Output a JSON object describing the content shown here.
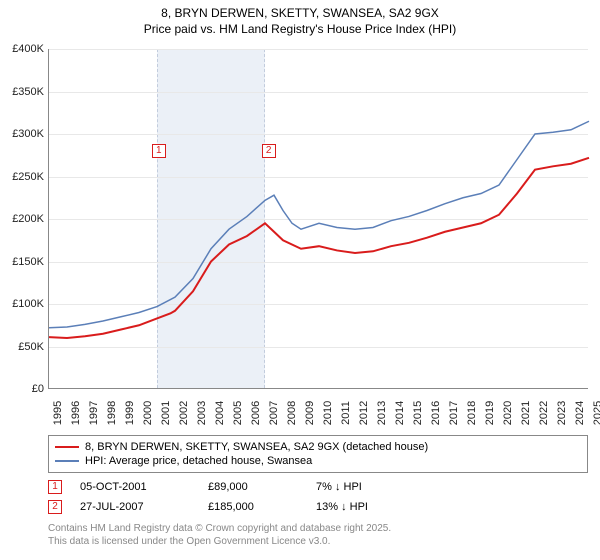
{
  "title_line1": "8, BRYN DERWEN, SKETTY, SWANSEA, SA2 9GX",
  "title_line2": "Price paid vs. HM Land Registry's House Price Index (HPI)",
  "chart": {
    "type": "line",
    "background_color": "#ffffff",
    "grid_color": "#e8e8e8",
    "axis_color": "#888888",
    "ylim": [
      0,
      400000
    ],
    "ytick_step": 50000,
    "y_ticks": [
      "£0",
      "£50K",
      "£100K",
      "£150K",
      "£200K",
      "£250K",
      "£300K",
      "£350K",
      "£400K"
    ],
    "x_years": [
      1995,
      1996,
      1997,
      1998,
      1999,
      2000,
      2001,
      2002,
      2003,
      2004,
      2005,
      2006,
      2007,
      2008,
      2009,
      2010,
      2011,
      2012,
      2013,
      2014,
      2015,
      2016,
      2017,
      2018,
      2019,
      2020,
      2021,
      2022,
      2023,
      2024,
      2025
    ],
    "shaded_band_start_year": 2001,
    "shaded_band_end_year": 2007,
    "shaded_color": "#e8eef6",
    "annotations": [
      {
        "label": "1",
        "year": 2001.1,
        "y": 280000
      },
      {
        "label": "2",
        "year": 2007.2,
        "y": 280000
      }
    ],
    "series": [
      {
        "name": "price_paid",
        "label": "8, BRYN DERWEN, SKETTY, SWANSEA, SA2 9GX (detached house)",
        "color": "#d91c1c",
        "line_width": 2,
        "data": [
          [
            1995,
            61000
          ],
          [
            1996,
            60000
          ],
          [
            1997,
            62000
          ],
          [
            1998,
            65000
          ],
          [
            1999,
            70000
          ],
          [
            2000,
            75000
          ],
          [
            2001,
            83000
          ],
          [
            2001.75,
            89000
          ],
          [
            2002,
            92000
          ],
          [
            2003,
            115000
          ],
          [
            2004,
            150000
          ],
          [
            2005,
            170000
          ],
          [
            2006,
            180000
          ],
          [
            2007,
            195000
          ],
          [
            2007.5,
            185000
          ],
          [
            2008,
            175000
          ],
          [
            2009,
            165000
          ],
          [
            2010,
            168000
          ],
          [
            2011,
            163000
          ],
          [
            2012,
            160000
          ],
          [
            2013,
            162000
          ],
          [
            2014,
            168000
          ],
          [
            2015,
            172000
          ],
          [
            2016,
            178000
          ],
          [
            2017,
            185000
          ],
          [
            2018,
            190000
          ],
          [
            2019,
            195000
          ],
          [
            2020,
            205000
          ],
          [
            2021,
            230000
          ],
          [
            2022,
            258000
          ],
          [
            2023,
            262000
          ],
          [
            2024,
            265000
          ],
          [
            2025,
            272000
          ]
        ]
      },
      {
        "name": "hpi",
        "label": "HPI: Average price, detached house, Swansea",
        "color": "#5b7fb8",
        "line_width": 1.5,
        "data": [
          [
            1995,
            72000
          ],
          [
            1996,
            73000
          ],
          [
            1997,
            76000
          ],
          [
            1998,
            80000
          ],
          [
            1999,
            85000
          ],
          [
            2000,
            90000
          ],
          [
            2001,
            97000
          ],
          [
            2002,
            108000
          ],
          [
            2003,
            130000
          ],
          [
            2004,
            165000
          ],
          [
            2005,
            188000
          ],
          [
            2006,
            203000
          ],
          [
            2007,
            222000
          ],
          [
            2007.5,
            228000
          ],
          [
            2008,
            210000
          ],
          [
            2008.5,
            195000
          ],
          [
            2009,
            188000
          ],
          [
            2010,
            195000
          ],
          [
            2011,
            190000
          ],
          [
            2012,
            188000
          ],
          [
            2013,
            190000
          ],
          [
            2014,
            198000
          ],
          [
            2015,
            203000
          ],
          [
            2016,
            210000
          ],
          [
            2017,
            218000
          ],
          [
            2018,
            225000
          ],
          [
            2019,
            230000
          ],
          [
            2020,
            240000
          ],
          [
            2021,
            270000
          ],
          [
            2022,
            300000
          ],
          [
            2023,
            302000
          ],
          [
            2024,
            305000
          ],
          [
            2025,
            315000
          ]
        ]
      }
    ]
  },
  "legend": {
    "item1_label": "8, BRYN DERWEN, SKETTY, SWANSEA, SA2 9GX (detached house)",
    "item2_label": "HPI: Average price, detached house, Swansea"
  },
  "transactions": [
    {
      "label": "1",
      "date": "05-OCT-2001",
      "price": "£89,000",
      "delta": "7% ↓ HPI"
    },
    {
      "label": "2",
      "date": "27-JUL-2007",
      "price": "£185,000",
      "delta": "13% ↓ HPI"
    }
  ],
  "footer_line1": "Contains HM Land Registry data © Crown copyright and database right 2025.",
  "footer_line2": "This data is licensed under the Open Government Licence v3.0."
}
